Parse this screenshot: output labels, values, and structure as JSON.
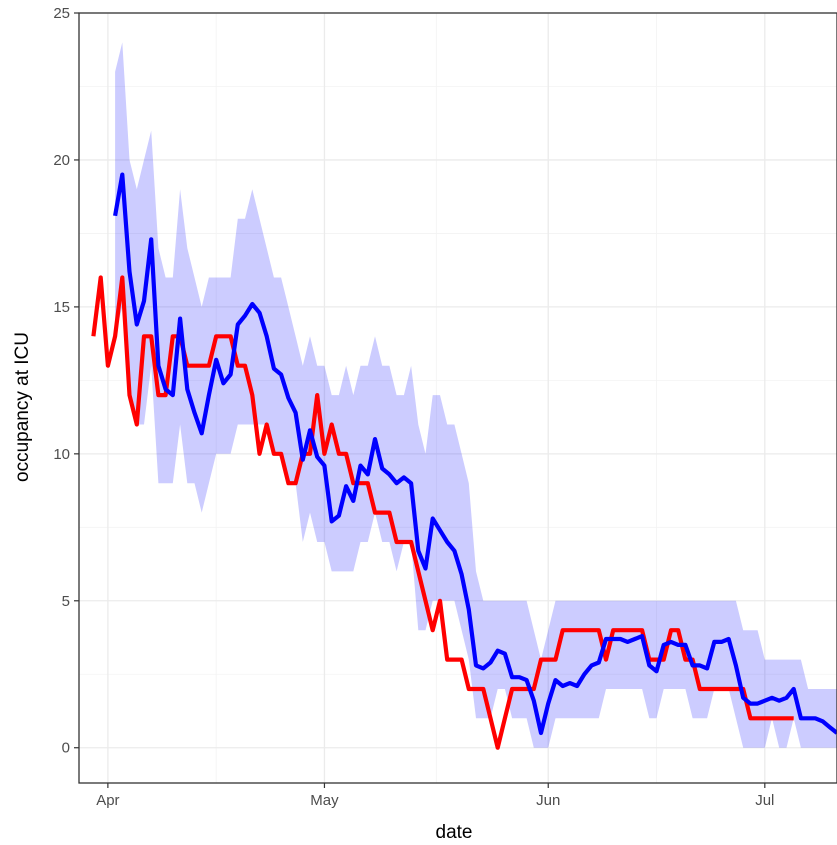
{
  "chart_data": {
    "type": "line",
    "title": "",
    "xlabel": "date",
    "ylabel": "occupancy at ICU",
    "x_start": "2020-03-30",
    "xlim": [
      "2020-03-28",
      "2020-07-11"
    ],
    "ylim": [
      -1.2,
      25
    ],
    "grid": true,
    "legend": "none",
    "x_ticks": [
      {
        "date": "2020-04-01",
        "label": "Apr"
      },
      {
        "date": "2020-05-01",
        "label": "May"
      },
      {
        "date": "2020-06-01",
        "label": "Jun"
      },
      {
        "date": "2020-07-01",
        "label": "Jul"
      }
    ],
    "y_ticks": [
      0,
      5,
      10,
      15,
      20,
      25
    ],
    "series": [
      {
        "role": "observed",
        "color": "#ff0000",
        "values": [
          14,
          16,
          13,
          14,
          16,
          12,
          11,
          14,
          14,
          12,
          12,
          14,
          14,
          13,
          13,
          13,
          13,
          14,
          14,
          14,
          13,
          13,
          12,
          10,
          11,
          10,
          10,
          9,
          9,
          10,
          10,
          12,
          10,
          11,
          10,
          10,
          9,
          9,
          9,
          8,
          8,
          8,
          7,
          7,
          7,
          6,
          5,
          4,
          5,
          3,
          3,
          3,
          2,
          2,
          2,
          1,
          0,
          1,
          2,
          2,
          2,
          2,
          3,
          3,
          3,
          4,
          4,
          4,
          4,
          4,
          4,
          3,
          4,
          4,
          4,
          4,
          4,
          3,
          3,
          3,
          4,
          4,
          3,
          3,
          2,
          2,
          2,
          2,
          2,
          2,
          2,
          1,
          1,
          1,
          1,
          1,
          1,
          1
        ]
      },
      {
        "role": "estimate",
        "color": "#0000ff",
        "start_index": 3,
        "values": [
          18.1,
          19.5,
          16.2,
          14.4,
          15.2,
          17.3,
          13,
          12.2,
          12,
          14.6,
          12.2,
          11.4,
          10.7,
          12,
          13.2,
          12.4,
          12.7,
          14.4,
          14.7,
          15.1,
          14.8,
          14,
          12.9,
          12.7,
          11.9,
          11.4,
          9.8,
          10.8,
          9.9,
          9.6,
          7.7,
          7.9,
          8.9,
          8.4,
          9.6,
          9.3,
          10.5,
          9.5,
          9.3,
          9,
          9.2,
          9,
          6.7,
          6.1,
          7.8,
          7.4,
          7,
          6.7,
          5.9,
          4.7,
          2.8,
          2.7,
          2.9,
          3.3,
          3.2,
          2.4,
          2.4,
          2.3,
          1.6,
          0.5,
          1.5,
          2.3,
          2.1,
          2.2,
          2.1,
          2.5,
          2.8,
          2.9,
          3.7,
          3.7,
          3.7,
          3.6,
          3.7,
          3.8,
          2.8,
          2.6,
          3.5,
          3.6,
          3.5,
          3.5,
          2.8,
          2.8,
          2.7,
          3.6,
          3.6,
          3.7,
          2.8,
          1.7,
          1.5,
          1.5,
          1.6,
          1.7,
          1.6,
          1.7,
          2,
          1,
          1,
          1,
          0.9,
          0.7,
          0.5
        ]
      }
    ],
    "band": {
      "color": "#0000ff",
      "opacity": 0.2,
      "start_index": 3,
      "upper": [
        23,
        24,
        20,
        19,
        20,
        21,
        17,
        16,
        16,
        19,
        17,
        16,
        15,
        16,
        16,
        16,
        16,
        18,
        18,
        19,
        18,
        17,
        16,
        16,
        15,
        14,
        13,
        14,
        13,
        13,
        12,
        12,
        13,
        12,
        13,
        13,
        14,
        13,
        13,
        12,
        12,
        13,
        11,
        10,
        12,
        12,
        11,
        11,
        10,
        9,
        6,
        5,
        5,
        5,
        5,
        5,
        5,
        5,
        4,
        3,
        4,
        5,
        5,
        5,
        5,
        5,
        5,
        5,
        5,
        5,
        5,
        5,
        5,
        5,
        5,
        5,
        5,
        5,
        5,
        5,
        5,
        5,
        5,
        5,
        5,
        5,
        5,
        4,
        4,
        4,
        3,
        3,
        3,
        3,
        3,
        3,
        2,
        2,
        2,
        2,
        2
      ],
      "lower": [
        14,
        15,
        12,
        11,
        11,
        13,
        9,
        9,
        9,
        11,
        9,
        9,
        8,
        9,
        10,
        10,
        10,
        11,
        11,
        11,
        11,
        11,
        10,
        10,
        9,
        9,
        7,
        8,
        7,
        7,
        6,
        6,
        6,
        6,
        7,
        7,
        8,
        7,
        7,
        6,
        7,
        7,
        4,
        4,
        5,
        5,
        5,
        5,
        4,
        3,
        1,
        1,
        1,
        2,
        2,
        1,
        1,
        1,
        0,
        0,
        0,
        1,
        1,
        1,
        1,
        1,
        1,
        1,
        2,
        2,
        2,
        2,
        2,
        2,
        1,
        1,
        2,
        2,
        2,
        2,
        1,
        1,
        1,
        2,
        2,
        2,
        1,
        0,
        0,
        0,
        0,
        1,
        0,
        0,
        1,
        0,
        0,
        0,
        0,
        0,
        0
      ]
    }
  }
}
